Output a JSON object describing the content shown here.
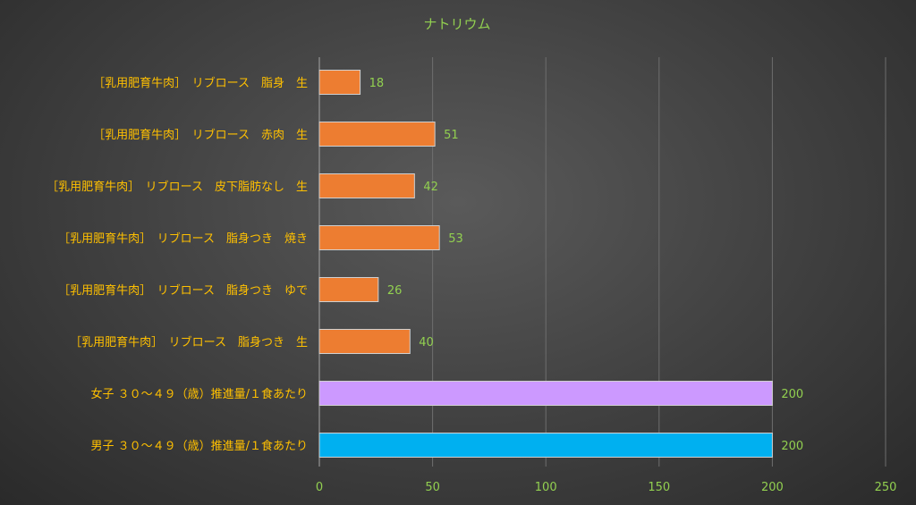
{
  "chart_data": {
    "type": "bar",
    "orientation": "horizontal",
    "title": "ナトリウム",
    "categories": [
      "［乳用肥育牛肉］　リブロース　脂身　生",
      "［乳用肥育牛肉］　リブロース　赤肉　生",
      "［乳用肥育牛肉］　リブロース　皮下脂肪なし　生",
      "［乳用肥育牛肉］　リブロース　脂身つき　焼き",
      "［乳用肥育牛肉］　リブロース　脂身つき　ゆで",
      "［乳用肥育牛肉］　リブロース　脂身つき　生",
      "女子 ３０～４９（歳）推進量/１食あたり",
      "男子 ３０～４９（歳）推進量/１食あたり"
    ],
    "values": [
      18,
      51,
      42,
      53,
      26,
      40,
      200,
      200
    ],
    "colors": [
      "#ed7d31",
      "#ed7d31",
      "#ed7d31",
      "#ed7d31",
      "#ed7d31",
      "#ed7d31",
      "#cc99ff",
      "#00b0f0"
    ],
    "xlim": [
      0,
      250
    ],
    "xticks": [
      0,
      50,
      100,
      150,
      200,
      250
    ],
    "grid": true,
    "legend": "none"
  }
}
